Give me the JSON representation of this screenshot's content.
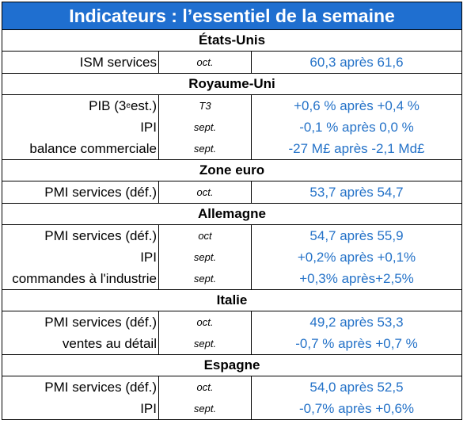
{
  "title": "Indicateurs : l’essentiel de la semaine",
  "colors": {
    "header_bg": "#1f6fd0",
    "header_text": "#ffffff",
    "value_text": "#2472c8"
  },
  "sections": [
    {
      "region": "États-Unis",
      "rows": [
        {
          "indicator": "ISM services",
          "period": "oct.",
          "value": "60,3 après 61,6"
        }
      ]
    },
    {
      "region": "Royaume-Uni",
      "rows": [
        {
          "indicator": "PIB (3",
          "indicator_sup": "e",
          "indicator_tail": " est.)",
          "period": "T3",
          "value": "+0,6 % après +0,4 %"
        },
        {
          "indicator": "IPI",
          "period": "sept.",
          "value": "-0,1 % après 0,0 %"
        },
        {
          "indicator": "balance commerciale",
          "period": "sept.",
          "value": "-27 M£ après -2,1 Md£"
        }
      ]
    },
    {
      "region": "Zone euro",
      "rows": [
        {
          "indicator": "PMI services (déf.)",
          "period": "oct.",
          "value": "53,7 après 54,7"
        }
      ]
    },
    {
      "region": "Allemagne",
      "rows": [
        {
          "indicator": "PMI services (déf.)",
          "period": "oct",
          "value": "54,7 après 55,9"
        },
        {
          "indicator": "IPI",
          "period": "sept.",
          "value": "+0,2% après +0,1%"
        },
        {
          "indicator": "commandes à l'industrie",
          "period": "sept.",
          "value": "+0,3% après+2,5%"
        }
      ]
    },
    {
      "region": "Italie",
      "rows": [
        {
          "indicator": "PMI services (déf.)",
          "period": "oct.",
          "value": "49,2 après 53,3"
        },
        {
          "indicator": "ventes au détail",
          "period": "sept.",
          "value": "-0,7 % après +0,7 %"
        }
      ]
    },
    {
      "region": "Espagne",
      "rows": [
        {
          "indicator": "PMI services (déf.)",
          "period": "oct.",
          "value": "54,0 après 52,5"
        },
        {
          "indicator": "IPI",
          "period": "sept.",
          "value": "-0,7% après +0,6%"
        }
      ]
    }
  ]
}
